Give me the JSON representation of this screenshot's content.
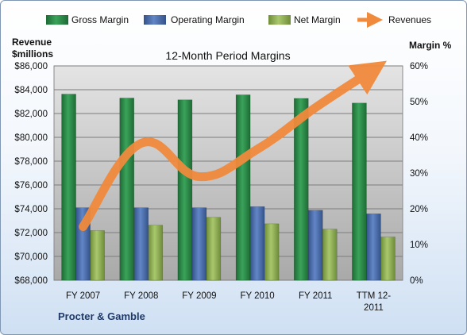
{
  "chart_data": {
    "type": "bar",
    "title": "12-Month Period Margins",
    "footer": "Procter & Gamble",
    "categories": [
      "FY 2007",
      "FY 2008",
      "FY 2009",
      "FY 2010",
      "FY 2011",
      "TTM 12-2011"
    ],
    "category_lines": [
      [
        "FY 2007"
      ],
      [
        "FY 2008"
      ],
      [
        "FY 2009"
      ],
      [
        "FY 2010"
      ],
      [
        "FY 2011"
      ],
      [
        "TTM 12-",
        "2011"
      ]
    ],
    "left_axis": {
      "label_lines": [
        "Revenue",
        "$millions"
      ],
      "ticks": [
        "$68,000",
        "$70,000",
        "$72,000",
        "$74,000",
        "$76,000",
        "$78,000",
        "$80,000",
        "$82,000",
        "$84,000",
        "$86,000"
      ],
      "range": [
        68000,
        86000
      ]
    },
    "right_axis": {
      "label": "Margin %",
      "ticks": [
        "0%",
        "10%",
        "20%",
        "30%",
        "40%",
        "50%",
        "60%"
      ],
      "range": [
        0,
        60
      ]
    },
    "series": [
      {
        "name": "Gross Margin",
        "axis": "right",
        "kind": "bar",
        "color": "#2e8b4a",
        "values": [
          52.1,
          51.0,
          50.5,
          51.9,
          50.9,
          49.6
        ]
      },
      {
        "name": "Operating Margin",
        "axis": "right",
        "kind": "bar",
        "color": "#4f72b2",
        "values": [
          20.3,
          20.3,
          20.3,
          20.6,
          19.6,
          18.6
        ]
      },
      {
        "name": "Net Margin",
        "axis": "right",
        "kind": "bar",
        "color": "#93b35b",
        "values": [
          13.9,
          15.4,
          17.6,
          15.8,
          14.3,
          12.1
        ]
      },
      {
        "name": "Revenues",
        "axis": "left",
        "kind": "line",
        "color": "#f08a3c",
        "values": [
          72500,
          79500,
          76700,
          79000,
          82500,
          85700
        ]
      }
    ],
    "grid": true,
    "legend_position": "top"
  }
}
